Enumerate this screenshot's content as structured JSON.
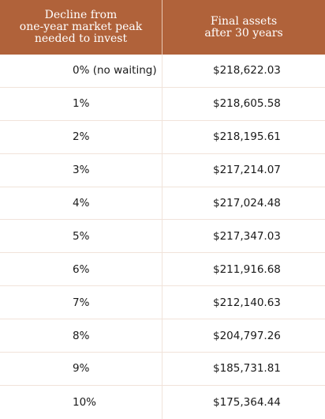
{
  "header": {
    "col1": "Decline from\none-year market peak\nneeded to invest",
    "col2": "Final assets\nafter 30 years"
  },
  "rows": [
    {
      "decline": "0% (no waiting)",
      "assets": "$218,622.03"
    },
    {
      "decline": "1%",
      "assets": "$218,605.58"
    },
    {
      "decline": "2%",
      "assets": "$218,195.61"
    },
    {
      "decline": "3%",
      "assets": "$217,214.07"
    },
    {
      "decline": "4%",
      "assets": "$217,024.48"
    },
    {
      "decline": "5%",
      "assets": "$217,347.03"
    },
    {
      "decline": "6%",
      "assets": "$211,916.68"
    },
    {
      "decline": "7%",
      "assets": "$212,140.63"
    },
    {
      "decline": "8%",
      "assets": "$204,797.26"
    },
    {
      "decline": "9%",
      "assets": "$185,731.81"
    },
    {
      "decline": "10%",
      "assets": "$175,364.44"
    }
  ],
  "colors": {
    "header_bg": "#b0623a",
    "header_text": "#ffffff",
    "grid": "#f1e3da",
    "body_text": "#1a1a1a"
  }
}
